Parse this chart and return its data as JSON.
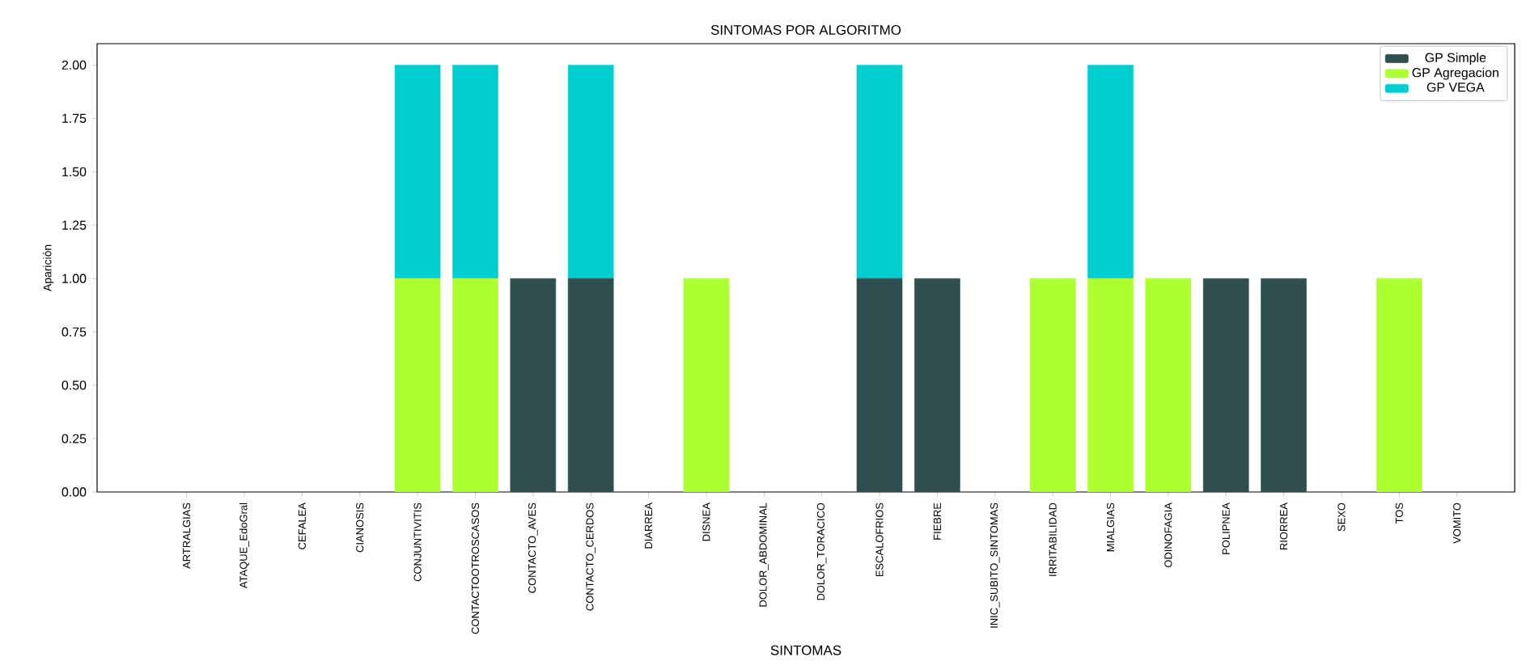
{
  "chart_data": {
    "type": "bar",
    "stacked": true,
    "title": "SINTOMAS POR ALGORITMO",
    "xlabel": "SINTOMAS",
    "ylabel": "Aparición",
    "categories": [
      "ARTRALGIAS",
      "ATAQUE_EdoGral",
      "CEFALEA",
      "CIANOSIS",
      "CONJUNTIVITIS",
      "CONTACTOOTROSCASOS",
      "CONTACTO_AVES",
      "CONTACTO_CERDOS",
      "DIARREA",
      "DISNEA",
      "DOLOR_ABDOMINAL",
      "DOLOR_TORACICO",
      "ESCALOFRIOS",
      "FIEBRE",
      "INIC_SUBITO_SINTOMAS",
      "IRRITABILIDAD",
      "MIALGIAS",
      "ODINOFAGIA",
      "POLIPNEA",
      "RIORREA",
      "SEXO",
      "TOS",
      "VOMITO"
    ],
    "series": [
      {
        "name": "GP Simple",
        "color": "#2f4f4f",
        "values": [
          0,
          0,
          0,
          0,
          0,
          0,
          1,
          1,
          0,
          0,
          0,
          0,
          1,
          1,
          0,
          0,
          0,
          0,
          1,
          1,
          0,
          0,
          0
        ]
      },
      {
        "name": "GP Agregacion",
        "color": "#adff2f",
        "values": [
          0,
          0,
          0,
          0,
          1,
          1,
          0,
          0,
          0,
          1,
          0,
          0,
          0,
          0,
          0,
          1,
          1,
          1,
          0,
          0,
          0,
          1,
          0
        ]
      },
      {
        "name": "GP VEGA",
        "color": "#00ced1",
        "values": [
          0,
          0,
          0,
          0,
          1,
          1,
          0,
          1,
          0,
          0,
          0,
          0,
          1,
          0,
          0,
          0,
          1,
          0,
          0,
          0,
          0,
          0,
          0
        ]
      }
    ],
    "ylim": [
      0,
      2.1
    ],
    "yticks": [
      {
        "value": 0,
        "label": "0.00"
      },
      {
        "value": 0.25,
        "label": "0.25"
      },
      {
        "value": 0.5,
        "label": "0.50"
      },
      {
        "value": 0.75,
        "label": "0.75"
      },
      {
        "value": 1,
        "label": "1.00"
      },
      {
        "value": 1.25,
        "label": "1.25"
      },
      {
        "value": 1.5,
        "label": "1.50"
      },
      {
        "value": 1.75,
        "label": "1.75"
      },
      {
        "value": 2,
        "label": "2.00"
      }
    ],
    "legend": "top right",
    "grid": false
  }
}
